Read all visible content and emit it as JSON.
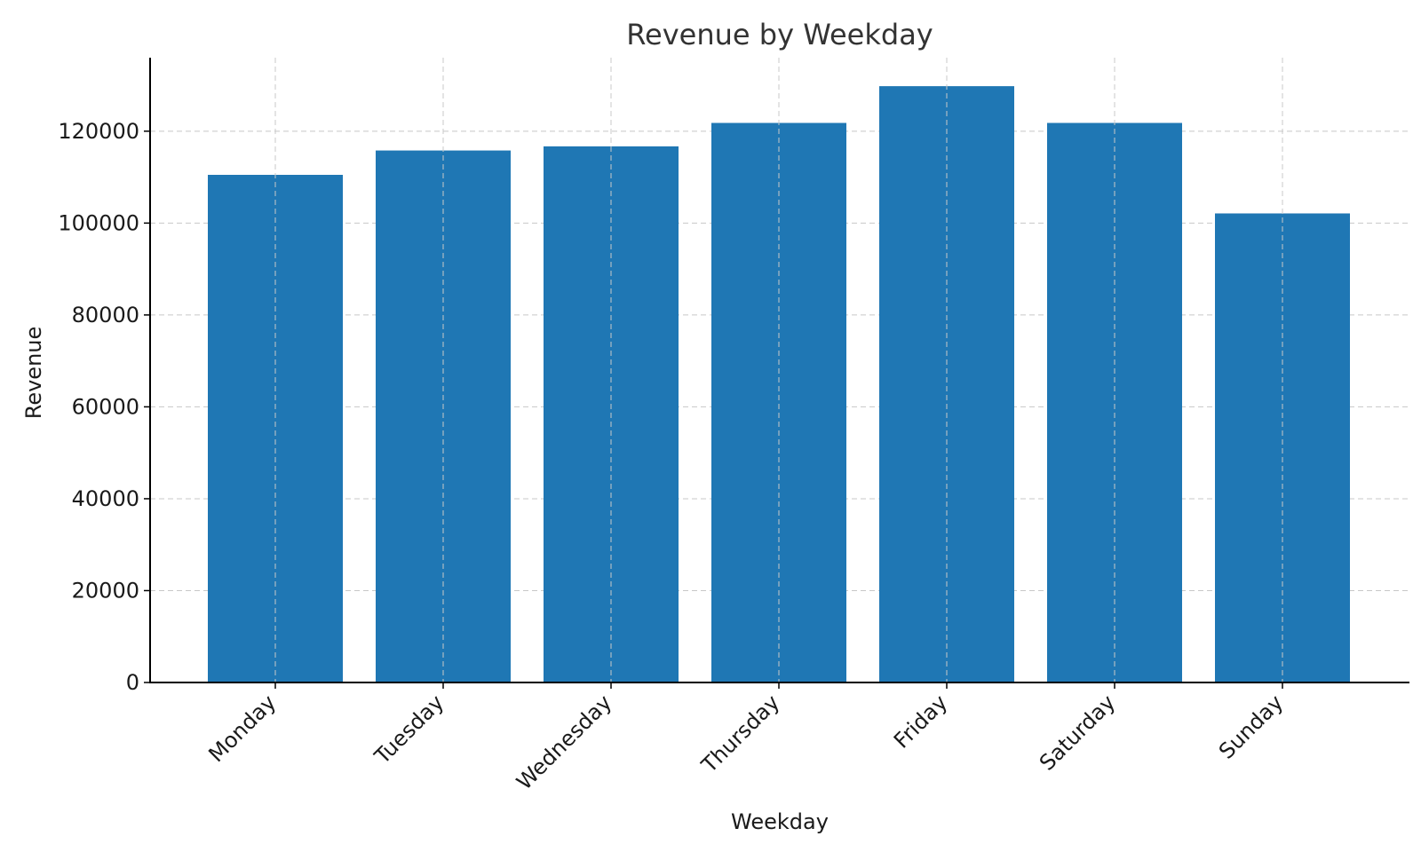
{
  "chart_data": {
    "type": "bar",
    "title": "Revenue by Weekday",
    "xlabel": "Weekday",
    "ylabel": "Revenue",
    "categories": [
      "Monday",
      "Tuesday",
      "Wednesday",
      "Thursday",
      "Friday",
      "Saturday",
      "Sunday"
    ],
    "values": [
      110500,
      115800,
      116700,
      121800,
      129800,
      121800,
      102100
    ],
    "ylim": [
      0,
      136000
    ],
    "yticks": [
      0,
      20000,
      40000,
      60000,
      80000,
      100000,
      120000
    ],
    "grid": true,
    "bar_color": "#1f77b4"
  }
}
